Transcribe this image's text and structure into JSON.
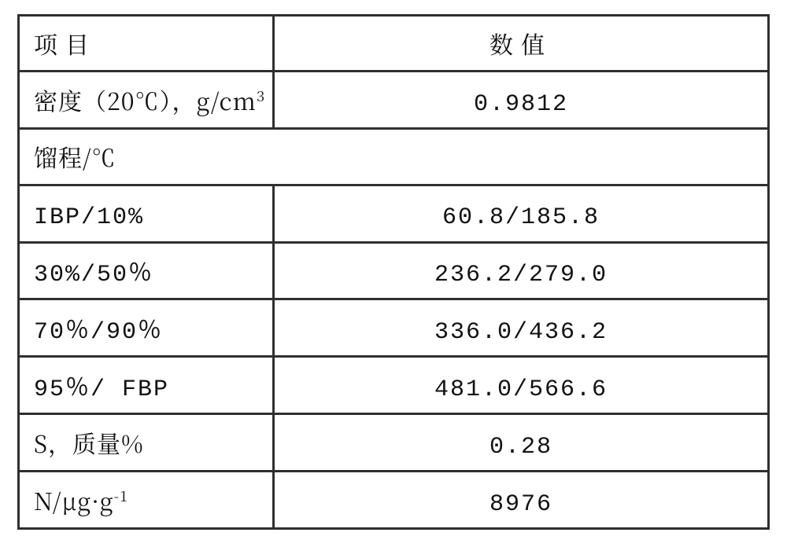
{
  "table": {
    "border_color": "#2f2f2f",
    "background_color": "#ffffff",
    "text_color": "#111111",
    "font_size_pt": 22,
    "col_widths_pct": [
      34,
      66
    ],
    "rows": [
      {
        "kind": "header",
        "label_html": "<span class='cjk-space'>项目</span>",
        "value_html": "<span class='cjk-space'>数值</span>"
      },
      {
        "kind": "data",
        "label_html": "密度（20℃），g/cm<sup>3</sup>",
        "value_html": "<span class='mono'>0.9812</span>"
      },
      {
        "kind": "section",
        "label_html": "馏程/℃"
      },
      {
        "kind": "data",
        "label_html": "<span class='mono'>IBP/10%</span>",
        "value_html": "<span class='mono'>60.8/185.8</span>"
      },
      {
        "kind": "data",
        "label_html": "<span class='mono'>30%/50％</span>",
        "value_html": "<span class='mono'>236.2/279.0</span>"
      },
      {
        "kind": "data",
        "label_html": "<span class='mono'>70％/90％</span>",
        "value_html": "<span class='mono'>336.0/436.2</span>"
      },
      {
        "kind": "data",
        "label_html": "<span class='mono'>95％/ FBP</span>",
        "value_html": "<span class='mono'>481.0/566.6</span>"
      },
      {
        "kind": "data",
        "label_html": "S，质量%",
        "value_html": "<span class='mono'>0.28</span>"
      },
      {
        "kind": "data",
        "label_html": "N/μg·g<sup>-1</sup>",
        "value_html": "<span class='mono'>8976</span>"
      }
    ]
  }
}
